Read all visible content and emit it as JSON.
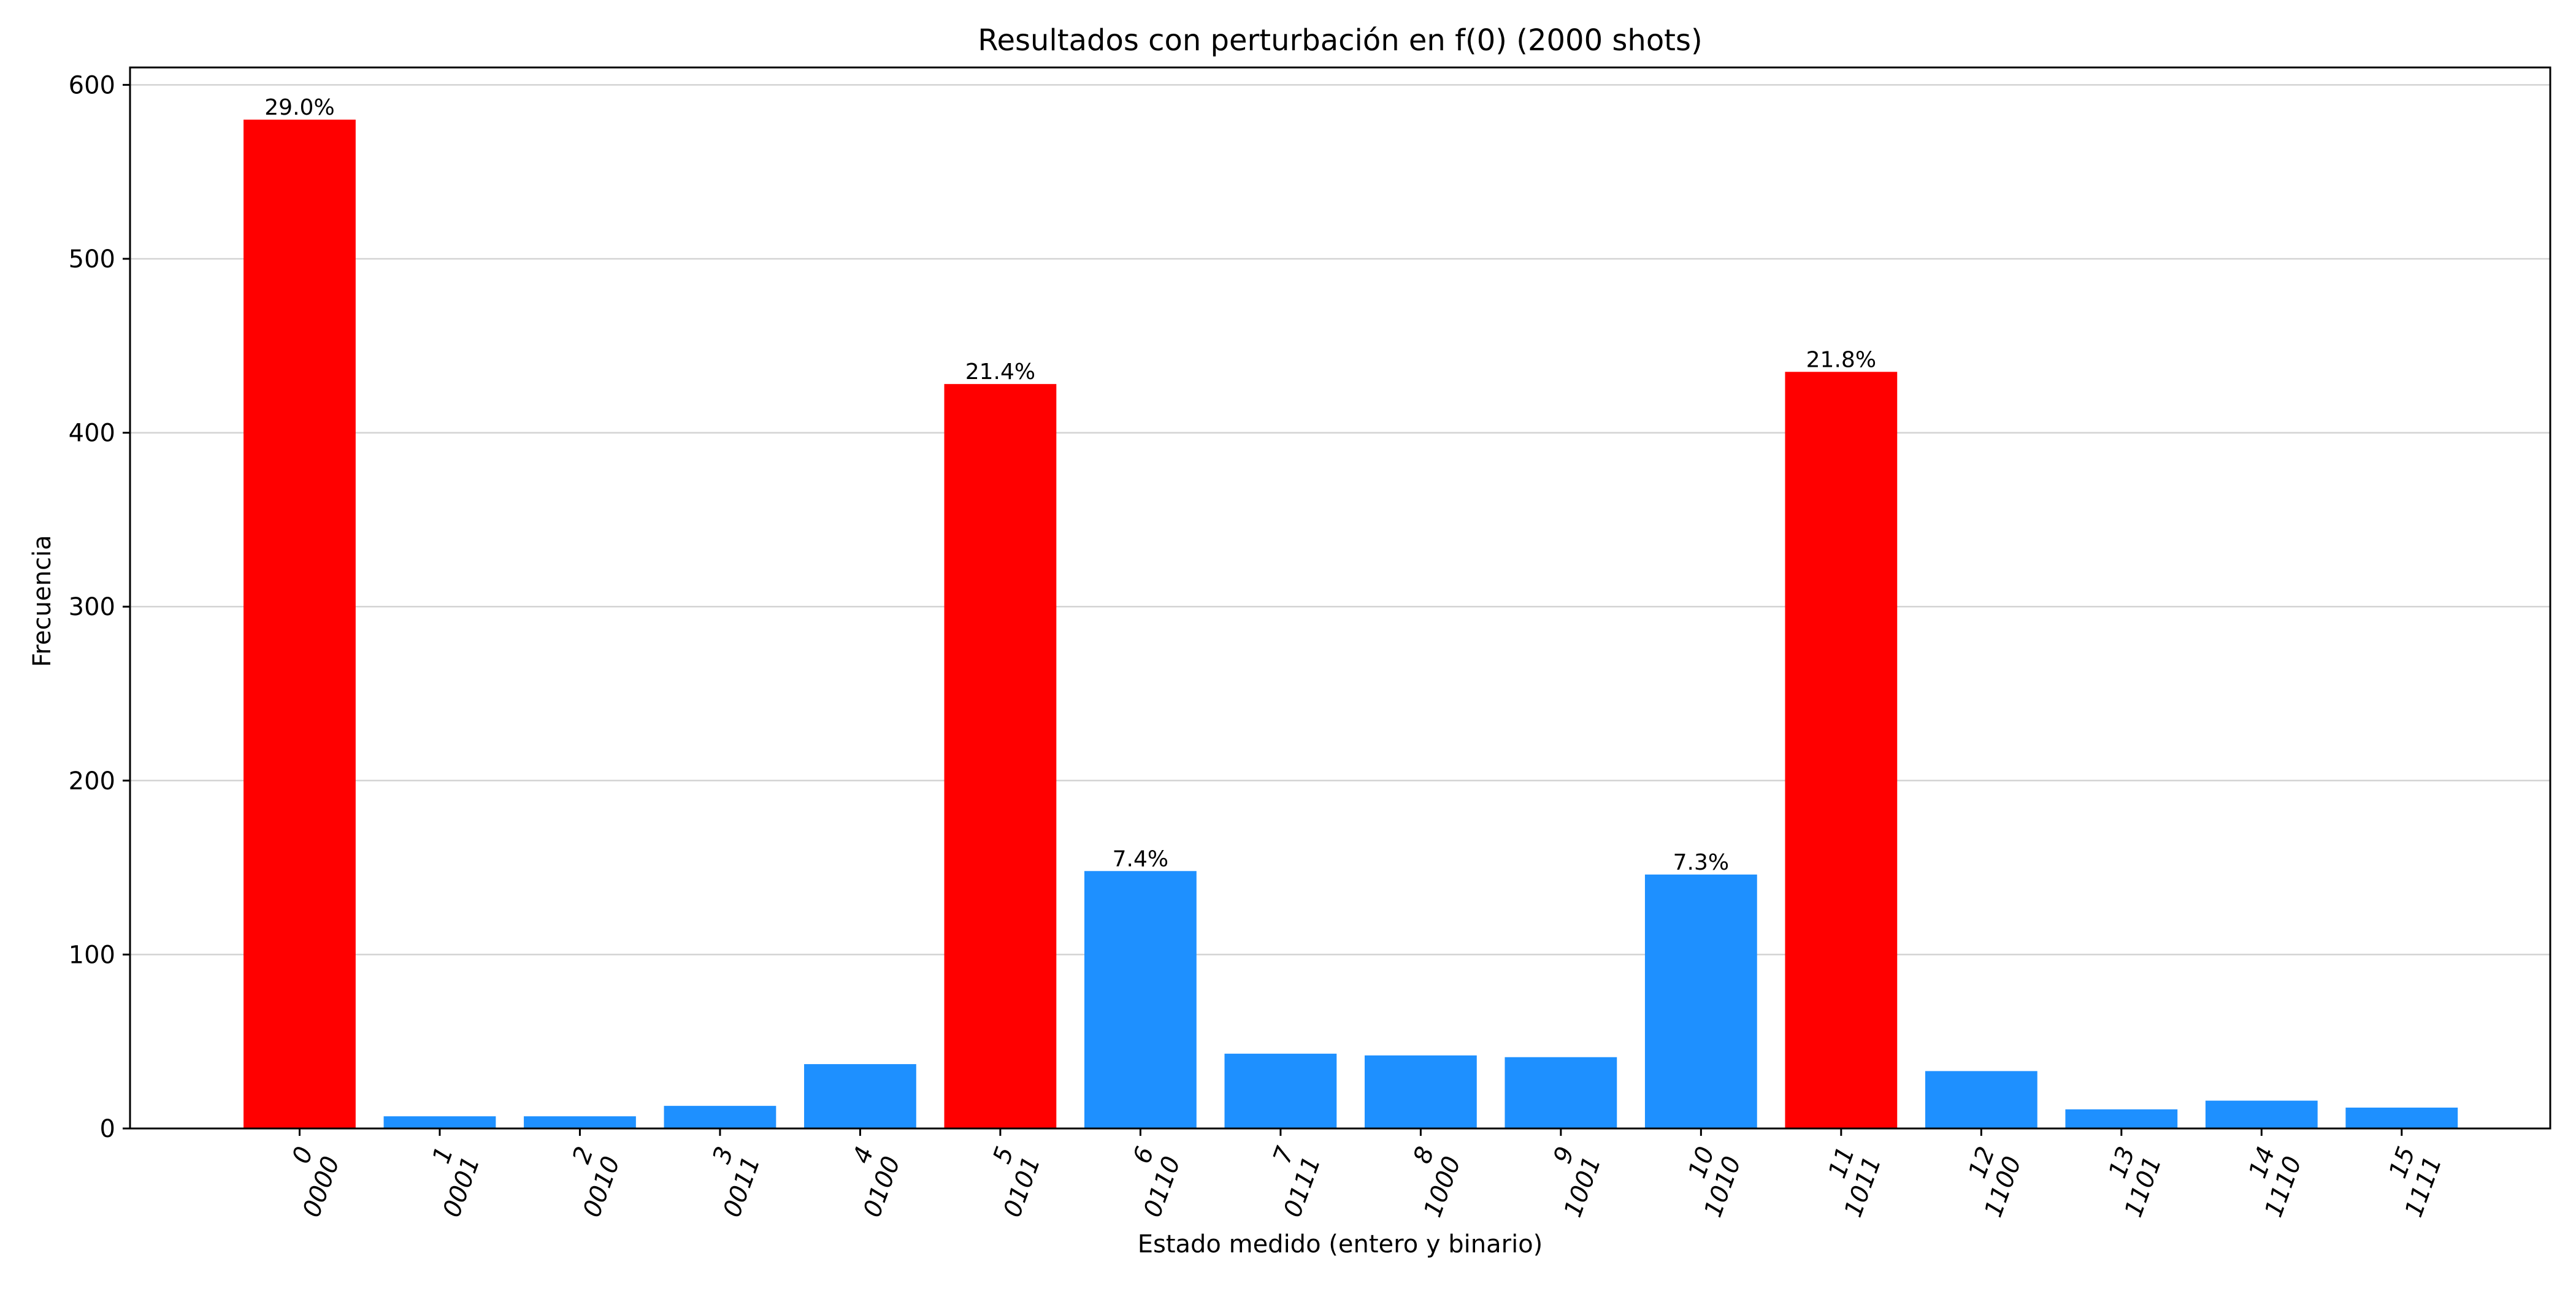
{
  "chart_data": {
    "type": "bar",
    "title": "Resultados con perturbación en f(0) (2000 shots)",
    "xlabel": "Estado medido (entero y binario)",
    "ylabel": "Frecuencia",
    "ylim": [
      0,
      610
    ],
    "yticks": [
      0,
      100,
      200,
      300,
      400,
      500,
      600
    ],
    "grid": "horizontal",
    "categories": [
      {
        "int": "0",
        "bin": "0000"
      },
      {
        "int": "1",
        "bin": "0001"
      },
      {
        "int": "2",
        "bin": "0010"
      },
      {
        "int": "3",
        "bin": "0011"
      },
      {
        "int": "4",
        "bin": "0100"
      },
      {
        "int": "5",
        "bin": "0101"
      },
      {
        "int": "6",
        "bin": "0110"
      },
      {
        "int": "7",
        "bin": "0111"
      },
      {
        "int": "8",
        "bin": "1000"
      },
      {
        "int": "9",
        "bin": "1001"
      },
      {
        "int": "10",
        "bin": "1010"
      },
      {
        "int": "11",
        "bin": "1011"
      },
      {
        "int": "12",
        "bin": "1100"
      },
      {
        "int": "13",
        "bin": "1101"
      },
      {
        "int": "14",
        "bin": "1110"
      },
      {
        "int": "15",
        "bin": "1111"
      }
    ],
    "values": [
      580,
      7,
      7,
      13,
      37,
      428,
      148,
      43,
      42,
      41,
      146,
      435,
      33,
      11,
      16,
      12
    ],
    "highlight": [
      true,
      false,
      false,
      false,
      false,
      true,
      false,
      false,
      false,
      false,
      false,
      true,
      false,
      false,
      false,
      false
    ],
    "data_labels": [
      "29.0%",
      "",
      "",
      "",
      "",
      "21.4%",
      "7.4%",
      "",
      "",
      "",
      "7.3%",
      "21.8%",
      "",
      "",
      "",
      ""
    ],
    "colors": {
      "highlight": "#ff0000",
      "normal": "#1e90ff",
      "grid": "#d3d3d3",
      "axis": "#000000"
    }
  }
}
